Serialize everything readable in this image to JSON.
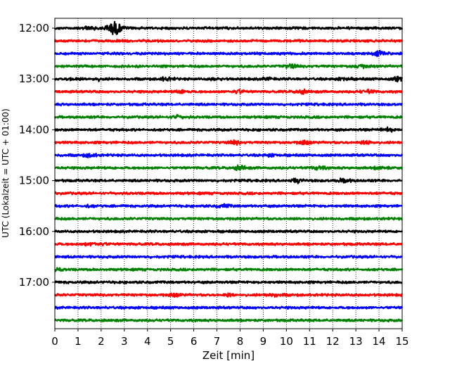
{
  "chart_data": {
    "type": "line",
    "title": "",
    "xlabel": "Zeit  [min]",
    "ylabel": "UTC (Lokalzeit = UTC + 01:00)",
    "xlim": [
      0,
      15
    ],
    "x_ticks": [
      "0",
      "1",
      "2",
      "3",
      "4",
      "5",
      "6",
      "7",
      "8",
      "9",
      "10",
      "11",
      "12",
      "13",
      "14",
      "15"
    ],
    "grid": "vertical dotted",
    "hour_labels": [
      "12:00",
      "13:00",
      "14:00",
      "15:00",
      "16:00",
      "17:00"
    ],
    "trace_interval_minutes": 15,
    "colors": [
      "#000000",
      "#ff0000",
      "#0000ff",
      "#008000"
    ],
    "traces": [
      {
        "start": "12:00",
        "color": "#000000",
        "events": [
          [
            1.5,
            0.35
          ],
          [
            2.5,
            1.0
          ],
          [
            2.7,
            0.6
          ]
        ]
      },
      {
        "start": "12:15",
        "color": "#ff0000",
        "events": []
      },
      {
        "start": "12:30",
        "color": "#0000ff",
        "events": [
          [
            14.0,
            0.45
          ]
        ]
      },
      {
        "start": "12:45",
        "color": "#008000",
        "events": [
          [
            10.2,
            0.35
          ],
          [
            13.2,
            0.35
          ]
        ]
      },
      {
        "start": "13:00",
        "color": "#000000",
        "events": [
          [
            0.8,
            0.3
          ],
          [
            1.8,
            0.3
          ],
          [
            4.8,
            0.3
          ],
          [
            7.0,
            0.25
          ],
          [
            9.2,
            0.25
          ],
          [
            12.5,
            0.3
          ],
          [
            14.8,
            0.4
          ]
        ]
      },
      {
        "start": "13:15",
        "color": "#ff0000",
        "events": [
          [
            5.5,
            0.3
          ],
          [
            7.9,
            0.35
          ],
          [
            10.7,
            0.35
          ],
          [
            13.5,
            0.35
          ]
        ]
      },
      {
        "start": "13:30",
        "color": "#0000ff",
        "events": []
      },
      {
        "start": "13:45",
        "color": "#008000",
        "events": [
          [
            5.3,
            0.3
          ]
        ]
      },
      {
        "start": "14:00",
        "color": "#000000",
        "events": [
          [
            14.4,
            0.45
          ]
        ]
      },
      {
        "start": "14:15",
        "color": "#ff0000",
        "events": [
          [
            7.8,
            0.35
          ],
          [
            10.8,
            0.35
          ],
          [
            13.5,
            0.35
          ]
        ]
      },
      {
        "start": "14:30",
        "color": "#0000ff",
        "events": [
          [
            1.5,
            0.35
          ],
          [
            9.3,
            0.2
          ]
        ]
      },
      {
        "start": "14:45",
        "color": "#008000",
        "events": [
          [
            8.0,
            0.45
          ],
          [
            11.4,
            0.35
          ],
          [
            14.1,
            0.35
          ]
        ]
      },
      {
        "start": "15:00",
        "color": "#000000",
        "events": [
          [
            10.5,
            0.4
          ],
          [
            12.5,
            0.4
          ]
        ]
      },
      {
        "start": "15:15",
        "color": "#ff0000",
        "events": []
      },
      {
        "start": "15:30",
        "color": "#0000ff",
        "events": [
          [
            1.5,
            0.15
          ],
          [
            7.3,
            0.3
          ]
        ]
      },
      {
        "start": "15:45",
        "color": "#008000",
        "events": []
      },
      {
        "start": "16:00",
        "color": "#000000",
        "events": []
      },
      {
        "start": "16:15",
        "color": "#ff0000",
        "events": [
          [
            1.5,
            0.25
          ],
          [
            2.0,
            0.2
          ]
        ]
      },
      {
        "start": "16:30",
        "color": "#0000ff",
        "events": []
      },
      {
        "start": "16:45",
        "color": "#008000",
        "events": [
          [
            0.2,
            0.2
          ]
        ]
      },
      {
        "start": "17:00",
        "color": "#000000",
        "events": []
      },
      {
        "start": "17:15",
        "color": "#ff0000",
        "events": [
          [
            5.2,
            0.3
          ],
          [
            7.5,
            0.25
          ],
          [
            9.5,
            0.3
          ]
        ]
      },
      {
        "start": "17:30",
        "color": "#0000ff",
        "events": []
      },
      {
        "start": "17:45",
        "color": "#008000",
        "events": []
      }
    ]
  }
}
